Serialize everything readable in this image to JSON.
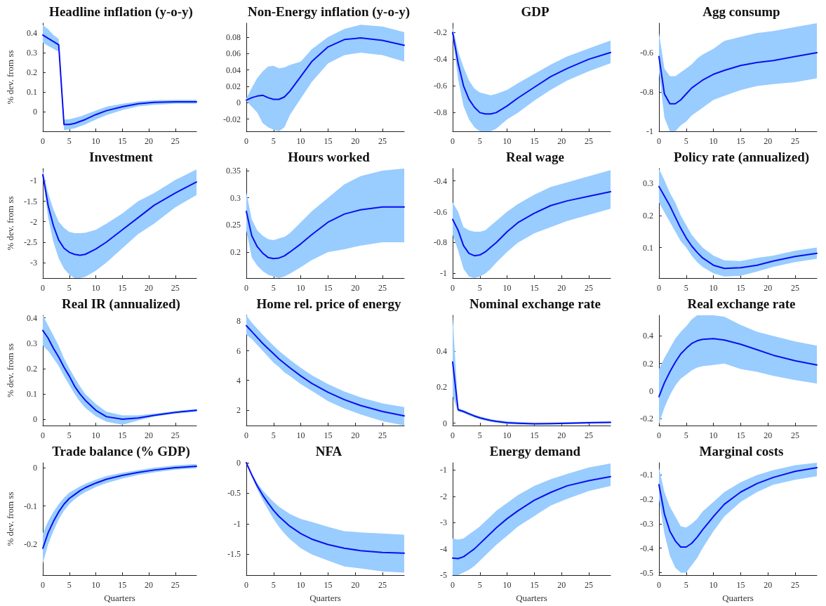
{
  "chart_data": [
    {
      "type": "line",
      "title": "Headline inflation (y-o-y)",
      "ylabel": "% dev. from ss",
      "x": [
        0,
        1,
        2,
        3,
        4,
        5,
        6,
        7,
        8,
        10,
        12,
        15,
        18,
        21,
        25,
        29
      ],
      "xlim": [
        0,
        29
      ],
      "xticks": [
        0,
        5,
        10,
        15,
        20,
        25
      ],
      "ylim": [
        -0.1,
        0.45
      ],
      "yticks": [
        0,
        0.1,
        0.2,
        0.3,
        0.4
      ],
      "series": [
        {
          "color": "#0a0ff0",
          "values": [
            0.39,
            0.373,
            0.357,
            0.34,
            -0.065,
            -0.065,
            -0.06,
            -0.05,
            -0.04,
            -0.015,
            0.005,
            0.025,
            0.04,
            0.047,
            0.05,
            0.05
          ],
          "lower": [
            0.35,
            0.335,
            0.32,
            0.305,
            -0.095,
            -0.09,
            -0.085,
            -0.075,
            -0.065,
            -0.04,
            -0.018,
            0.008,
            0.027,
            0.035,
            0.04,
            0.04
          ],
          "upper": [
            0.44,
            0.42,
            0.39,
            0.37,
            -0.04,
            -0.038,
            -0.032,
            -0.025,
            -0.015,
            0.005,
            0.025,
            0.04,
            0.052,
            0.058,
            0.06,
            0.06
          ]
        }
      ]
    },
    {
      "type": "line",
      "title": "Non-Energy inflation (y-o-y)",
      "x": [
        0,
        1,
        2,
        3,
        4,
        5,
        6,
        7,
        8,
        10,
        12,
        15,
        18,
        21,
        25,
        29
      ],
      "xlim": [
        0,
        29
      ],
      "xticks": [
        0,
        5,
        10,
        15,
        20,
        25
      ],
      "ylim": [
        -0.035,
        0.097
      ],
      "yticks": [
        -0.02,
        0,
        0.02,
        0.04,
        0.06,
        0.08
      ],
      "series": [
        {
          "color": "#0a0ff0",
          "values": [
            0.003,
            0.006,
            0.008,
            0.009,
            0.006,
            0.004,
            0.004,
            0.007,
            0.014,
            0.032,
            0.05,
            0.068,
            0.077,
            0.079,
            0.076,
            0.07
          ],
          "lower": [
            0.002,
            -0.005,
            -0.012,
            -0.025,
            -0.03,
            -0.033,
            -0.035,
            -0.03,
            -0.015,
            0.005,
            0.025,
            0.048,
            0.058,
            0.061,
            0.058,
            0.05
          ],
          "upper": [
            0.005,
            0.018,
            0.03,
            0.038,
            0.044,
            0.045,
            0.042,
            0.043,
            0.046,
            0.05,
            0.065,
            0.08,
            0.09,
            0.095,
            0.093,
            0.086
          ]
        }
      ]
    },
    {
      "type": "line",
      "title": "GDP",
      "x": [
        0,
        1,
        2,
        3,
        4,
        5,
        6,
        7,
        8,
        10,
        12,
        15,
        18,
        21,
        25,
        29
      ],
      "xlim": [
        0,
        29
      ],
      "xticks": [
        0,
        5,
        10,
        15,
        20,
        25
      ],
      "ylim": [
        -0.94,
        -0.13
      ],
      "yticks": [
        -0.8,
        -0.6,
        -0.4,
        -0.2
      ],
      "series": [
        {
          "color": "#0a0ff0",
          "values": [
            -0.2,
            -0.43,
            -0.6,
            -0.7,
            -0.76,
            -0.8,
            -0.81,
            -0.81,
            -0.8,
            -0.75,
            -0.69,
            -0.61,
            -0.53,
            -0.47,
            -0.4,
            -0.35
          ],
          "lower": [
            -0.23,
            -0.55,
            -0.75,
            -0.85,
            -0.91,
            -0.94,
            -0.94,
            -0.94,
            -0.92,
            -0.85,
            -0.8,
            -0.71,
            -0.63,
            -0.56,
            -0.49,
            -0.43
          ],
          "upper": [
            -0.16,
            -0.34,
            -0.46,
            -0.56,
            -0.62,
            -0.65,
            -0.66,
            -0.67,
            -0.66,
            -0.63,
            -0.58,
            -0.51,
            -0.44,
            -0.38,
            -0.32,
            -0.26
          ]
        }
      ]
    },
    {
      "type": "line",
      "title": "Agg consump",
      "x": [
        0,
        1,
        2,
        3,
        4,
        5,
        6,
        7,
        8,
        10,
        12,
        15,
        18,
        21,
        25,
        29
      ],
      "xlim": [
        0,
        29
      ],
      "xticks": [
        0,
        5,
        10,
        15,
        20,
        25
      ],
      "ylim": [
        -1,
        -0.45
      ],
      "yticks": [
        -1,
        -0.8,
        -0.6
      ],
      "series": [
        {
          "color": "#0a0ff0",
          "values": [
            -0.62,
            -0.81,
            -0.86,
            -0.86,
            -0.84,
            -0.81,
            -0.78,
            -0.76,
            -0.74,
            -0.71,
            -0.69,
            -0.665,
            -0.65,
            -0.64,
            -0.62,
            -0.6
          ],
          "lower": [
            -0.7,
            -0.93,
            -1,
            -1,
            -0.97,
            -0.95,
            -0.92,
            -0.9,
            -0.88,
            -0.84,
            -0.82,
            -0.79,
            -0.77,
            -0.76,
            -0.75,
            -0.73
          ],
          "upper": [
            -0.5,
            -0.68,
            -0.72,
            -0.72,
            -0.7,
            -0.68,
            -0.66,
            -0.63,
            -0.61,
            -0.58,
            -0.54,
            -0.52,
            -0.5,
            -0.49,
            -0.47,
            -0.45
          ]
        }
      ]
    },
    {
      "type": "line",
      "title": "Investment",
      "ylabel": "% dev. from ss",
      "x": [
        0,
        1,
        2,
        3,
        4,
        5,
        6,
        7,
        8,
        10,
        12,
        15,
        18,
        21,
        25,
        29
      ],
      "xlim": [
        0,
        29
      ],
      "xticks": [
        0,
        5,
        10,
        15,
        20,
        25
      ],
      "ylim": [
        -3.38,
        -0.7
      ],
      "yticks": [
        -3,
        -2.5,
        -2,
        -1.5,
        -1
      ],
      "series": [
        {
          "color": "#0a0ff0",
          "values": [
            -0.85,
            -1.6,
            -2.1,
            -2.45,
            -2.65,
            -2.75,
            -2.8,
            -2.82,
            -2.8,
            -2.67,
            -2.5,
            -2.2,
            -1.9,
            -1.6,
            -1.3,
            -1.03
          ],
          "lower": [
            -0.9,
            -1.9,
            -2.5,
            -2.9,
            -3.15,
            -3.3,
            -3.38,
            -3.38,
            -3.35,
            -3.2,
            -3,
            -2.65,
            -2.3,
            -2.05,
            -1.65,
            -1.35
          ],
          "upper": [
            -0.75,
            -1.3,
            -1.7,
            -2,
            -2.15,
            -2.25,
            -2.28,
            -2.28,
            -2.27,
            -2.2,
            -2.05,
            -1.8,
            -1.5,
            -1.3,
            -0.98,
            -0.72
          ]
        }
      ]
    },
    {
      "type": "line",
      "title": "Hours worked",
      "x": [
        0,
        1,
        2,
        3,
        4,
        5,
        6,
        7,
        8,
        10,
        12,
        15,
        18,
        21,
        25,
        29
      ],
      "xlim": [
        0,
        29
      ],
      "xticks": [
        0,
        5,
        10,
        15,
        20,
        25
      ],
      "ylim": [
        0.152,
        0.354
      ],
      "yticks": [
        0.2,
        0.25,
        0.3,
        0.35
      ],
      "series": [
        {
          "color": "#0a0ff0",
          "values": [
            0.275,
            0.23,
            0.21,
            0.198,
            0.19,
            0.188,
            0.189,
            0.193,
            0.2,
            0.215,
            0.232,
            0.255,
            0.27,
            0.278,
            0.283,
            0.283
          ],
          "lower": [
            0.24,
            0.19,
            0.175,
            0.165,
            0.158,
            0.155,
            0.152,
            0.155,
            0.16,
            0.172,
            0.185,
            0.2,
            0.205,
            0.212,
            0.218,
            0.218
          ],
          "upper": [
            0.31,
            0.26,
            0.24,
            0.23,
            0.224,
            0.222,
            0.225,
            0.228,
            0.235,
            0.255,
            0.275,
            0.3,
            0.325,
            0.34,
            0.35,
            0.354
          ]
        }
      ]
    },
    {
      "type": "line",
      "title": "Real wage",
      "x": [
        0,
        1,
        2,
        3,
        4,
        5,
        6,
        7,
        8,
        10,
        12,
        15,
        18,
        21,
        25,
        29
      ],
      "xlim": [
        0,
        29
      ],
      "xticks": [
        0,
        5,
        10,
        15,
        20,
        25
      ],
      "ylim": [
        -1.03,
        -0.32
      ],
      "yticks": [
        -1,
        -0.8,
        -0.6,
        -0.4
      ],
      "series": [
        {
          "color": "#0a0ff0",
          "values": [
            -0.65,
            -0.72,
            -0.82,
            -0.87,
            -0.885,
            -0.88,
            -0.86,
            -0.83,
            -0.8,
            -0.73,
            -0.67,
            -0.61,
            -0.56,
            -0.53,
            -0.5,
            -0.47
          ],
          "lower": [
            -0.75,
            -0.85,
            -0.97,
            -1.02,
            -1.03,
            -1.02,
            -1,
            -0.97,
            -0.93,
            -0.86,
            -0.8,
            -0.74,
            -0.7,
            -0.66,
            -0.62,
            -0.58
          ],
          "upper": [
            -0.54,
            -0.6,
            -0.7,
            -0.72,
            -0.73,
            -0.73,
            -0.72,
            -0.69,
            -0.66,
            -0.6,
            -0.55,
            -0.49,
            -0.44,
            -0.41,
            -0.37,
            -0.33
          ]
        }
      ]
    },
    {
      "type": "line",
      "title": "Policy rate (annualized)",
      "x": [
        0,
        1,
        2,
        3,
        4,
        5,
        6,
        7,
        8,
        10,
        12,
        15,
        18,
        21,
        25,
        29
      ],
      "xlim": [
        0,
        29
      ],
      "xticks": [
        0,
        5,
        10,
        15,
        20,
        25
      ],
      "ylim": [
        0.005,
        0.346
      ],
      "yticks": [
        0.1,
        0.2,
        0.3
      ],
      "series": [
        {
          "color": "#0a0ff0",
          "values": [
            0.29,
            0.26,
            0.23,
            0.195,
            0.16,
            0.13,
            0.105,
            0.085,
            0.068,
            0.045,
            0.035,
            0.037,
            0.045,
            0.058,
            0.072,
            0.082
          ],
          "lower": [
            0.24,
            0.21,
            0.18,
            0.15,
            0.12,
            0.1,
            0.075,
            0.055,
            0.04,
            0.02,
            0.01,
            0.012,
            0.025,
            0.04,
            0.055,
            0.065
          ],
          "upper": [
            0.345,
            0.31,
            0.27,
            0.24,
            0.2,
            0.17,
            0.14,
            0.12,
            0.1,
            0.075,
            0.06,
            0.058,
            0.068,
            0.075,
            0.09,
            0.1
          ]
        }
      ]
    },
    {
      "type": "line",
      "title": "Real IR (annualized)",
      "ylabel": "% dev. from ss",
      "x": [
        0,
        1,
        2,
        3,
        4,
        5,
        6,
        7,
        8,
        10,
        12,
        15,
        18,
        21,
        25,
        29
      ],
      "xlim": [
        0,
        29
      ],
      "xticks": [
        0,
        5,
        10,
        15,
        20,
        25
      ],
      "ylim": [
        -0.025,
        0.41
      ],
      "yticks": [
        0,
        0.1,
        0.2,
        0.3,
        0.4
      ],
      "series": [
        {
          "color": "#0a0ff0",
          "values": [
            0.35,
            0.32,
            0.28,
            0.245,
            0.205,
            0.17,
            0.13,
            0.1,
            0.075,
            0.035,
            0.01,
            0,
            0.005,
            0.015,
            0.027,
            0.035
          ],
          "lower": [
            0.29,
            0.27,
            0.24,
            0.21,
            0.17,
            0.135,
            0.1,
            0.07,
            0.045,
            0.012,
            -0.01,
            -0.022,
            -0.005,
            0.01,
            0.022,
            0.03
          ],
          "upper": [
            0.41,
            0.37,
            0.33,
            0.29,
            0.24,
            0.2,
            0.165,
            0.13,
            0.1,
            0.06,
            0.03,
            0.015,
            0.015,
            0.022,
            0.032,
            0.04
          ]
        }
      ]
    },
    {
      "type": "line",
      "title": "Home rel. price of energy",
      "x": [
        0,
        1,
        2,
        3,
        4,
        5,
        6,
        7,
        8,
        10,
        12,
        15,
        18,
        21,
        25,
        29
      ],
      "xlim": [
        0,
        29
      ],
      "xticks": [
        0,
        5,
        10,
        15,
        20,
        25
      ],
      "ylim": [
        0.95,
        8.4
      ],
      "yticks": [
        2,
        4,
        6,
        8
      ],
      "series": [
        {
          "color": "#0a0ff0",
          "values": [
            7.7,
            7.3,
            6.9,
            6.5,
            6.15,
            5.8,
            5.45,
            5.15,
            4.85,
            4.3,
            3.8,
            3.2,
            2.7,
            2.3,
            1.9,
            1.6
          ],
          "lower": [
            7.1,
            6.8,
            6.4,
            6,
            5.6,
            5.2,
            4.9,
            4.55,
            4.3,
            3.75,
            3.3,
            2.6,
            2.1,
            1.7,
            1.25,
            0.95
          ],
          "upper": [
            8.4,
            7.9,
            7.5,
            7.1,
            6.7,
            6.35,
            6,
            5.7,
            5.4,
            4.85,
            4.35,
            3.75,
            3.25,
            2.85,
            2.45,
            2.2
          ]
        }
      ]
    },
    {
      "type": "line",
      "title": "Nominal exchange rate",
      "x": [
        0,
        1,
        2,
        3,
        4,
        5,
        6,
        7,
        8,
        10,
        12,
        15,
        18,
        21,
        25,
        29
      ],
      "xlim": [
        0,
        29
      ],
      "xticks": [
        0,
        5,
        10,
        15,
        20,
        25
      ],
      "ylim": [
        -0.013,
        0.6
      ],
      "yticks": [
        0,
        0.2,
        0.4
      ],
      "series": [
        {
          "color": "#0a0ff0",
          "values": [
            0.34,
            0.075,
            0.065,
            0.052,
            0.04,
            0.03,
            0.022,
            0.015,
            0.01,
            0.003,
            0,
            -0.003,
            -0.002,
            0,
            0.003,
            0.005
          ],
          "lower": [
            0.15,
            0.065,
            0.057,
            0.044,
            0.032,
            0.022,
            0.014,
            0.008,
            0.003,
            -0.004,
            -0.007,
            -0.009,
            -0.008,
            -0.006,
            -0.002,
            0
          ],
          "upper": [
            0.6,
            0.085,
            0.073,
            0.06,
            0.048,
            0.038,
            0.03,
            0.022,
            0.017,
            0.01,
            0.007,
            0.003,
            0.004,
            0.006,
            0.008,
            0.01
          ]
        }
      ]
    },
    {
      "type": "line",
      "title": "Real exchange rate",
      "x": [
        0,
        1,
        2,
        3,
        4,
        5,
        6,
        7,
        8,
        10,
        12,
        15,
        18,
        21,
        25,
        29
      ],
      "xlim": [
        0,
        29
      ],
      "xticks": [
        0,
        5,
        10,
        15,
        20,
        25
      ],
      "ylim": [
        -0.25,
        0.55
      ],
      "yticks": [
        -0.2,
        0,
        0.2,
        0.4
      ],
      "series": [
        {
          "color": "#0a0ff0",
          "values": [
            -0.04,
            0.06,
            0.14,
            0.21,
            0.27,
            0.31,
            0.345,
            0.365,
            0.375,
            0.38,
            0.37,
            0.34,
            0.3,
            0.26,
            0.22,
            0.19
          ],
          "lower": [
            -0.24,
            -0.12,
            -0.03,
            0.04,
            0.09,
            0.12,
            0.15,
            0.17,
            0.18,
            0.19,
            0.2,
            0.16,
            0.14,
            0.11,
            0.08,
            0.055
          ],
          "upper": [
            0.16,
            0.24,
            0.31,
            0.38,
            0.43,
            0.47,
            0.52,
            0.55,
            0.55,
            0.55,
            0.54,
            0.48,
            0.43,
            0.4,
            0.36,
            0.33
          ]
        }
      ]
    },
    {
      "type": "line",
      "title": "Trade balance (% GDP)",
      "ylabel": "% dev. from ss",
      "xlabel": "Quarters",
      "x": [
        0,
        1,
        2,
        3,
        4,
        5,
        6,
        7,
        8,
        10,
        12,
        15,
        18,
        21,
        25,
        29
      ],
      "xlim": [
        0,
        29
      ],
      "xticks": [
        0,
        5,
        10,
        15,
        20,
        25
      ],
      "ylim": [
        -0.28,
        0.013
      ],
      "yticks": [
        -0.2,
        -0.1,
        0
      ],
      "series": [
        {
          "color": "#0a0ff0",
          "values": [
            -0.21,
            -0.17,
            -0.14,
            -0.115,
            -0.095,
            -0.08,
            -0.07,
            -0.06,
            -0.052,
            -0.04,
            -0.03,
            -0.02,
            -0.012,
            -0.006,
            0,
            0.004
          ],
          "lower": [
            -0.25,
            -0.2,
            -0.165,
            -0.135,
            -0.112,
            -0.095,
            -0.082,
            -0.072,
            -0.064,
            -0.05,
            -0.04,
            -0.028,
            -0.019,
            -0.012,
            -0.005,
            -0.001
          ],
          "upper": [
            -0.17,
            -0.14,
            -0.115,
            -0.095,
            -0.078,
            -0.065,
            -0.057,
            -0.049,
            -0.042,
            -0.031,
            -0.022,
            -0.013,
            -0.006,
            0,
            0.006,
            0.01
          ]
        }
      ]
    },
    {
      "type": "line",
      "title": "NFA",
      "xlabel": "Quarters",
      "x": [
        0,
        1,
        2,
        3,
        4,
        5,
        6,
        7,
        8,
        10,
        12,
        15,
        18,
        21,
        25,
        29
      ],
      "xlim": [
        0,
        29
      ],
      "xticks": [
        0,
        5,
        10,
        15,
        20,
        25
      ],
      "ylim": [
        -1.84,
        0
      ],
      "yticks": [
        -1.5,
        -1,
        -0.5,
        0
      ],
      "series": [
        {
          "color": "#0a0ff0",
          "values": [
            0,
            -0.2,
            -0.38,
            -0.53,
            -0.66,
            -0.78,
            -0.88,
            -0.96,
            -1.04,
            -1.16,
            -1.25,
            -1.34,
            -1.4,
            -1.44,
            -1.47,
            -1.48
          ],
          "lower": [
            0,
            -0.22,
            -0.43,
            -0.61,
            -0.77,
            -0.92,
            -1.05,
            -1.16,
            -1.25,
            -1.4,
            -1.5,
            -1.6,
            -1.7,
            -1.73,
            -1.78,
            -1.8
          ],
          "upper": [
            0,
            -0.17,
            -0.33,
            -0.45,
            -0.55,
            -0.64,
            -0.72,
            -0.78,
            -0.84,
            -0.92,
            -0.97,
            -1.05,
            -1.12,
            -1.14,
            -1.16,
            -1.18
          ]
        }
      ]
    },
    {
      "type": "line",
      "title": "Energy demand",
      "xlabel": "Quarters",
      "x": [
        0,
        1,
        2,
        3,
        4,
        5,
        6,
        7,
        8,
        10,
        12,
        15,
        18,
        21,
        25,
        29
      ],
      "xlim": [
        0,
        29
      ],
      "xticks": [
        0,
        5,
        10,
        15,
        20,
        25
      ],
      "ylim": [
        -5,
        -0.72
      ],
      "yticks": [
        -5,
        -4,
        -3,
        -2,
        -1
      ],
      "series": [
        {
          "color": "#0a0ff0",
          "values": [
            -4.35,
            -4.37,
            -4.3,
            -4.15,
            -4,
            -3.8,
            -3.6,
            -3.4,
            -3.2,
            -2.85,
            -2.55,
            -2.15,
            -1.85,
            -1.6,
            -1.4,
            -1.25
          ],
          "lower": [
            -5,
            -5,
            -4.9,
            -4.8,
            -4.65,
            -4.45,
            -4.25,
            -4.05,
            -3.85,
            -3.5,
            -3.15,
            -2.75,
            -2.35,
            -2.1,
            -1.8,
            -1.6
          ],
          "upper": [
            -3.6,
            -3.65,
            -3.6,
            -3.45,
            -3.3,
            -3.15,
            -2.95,
            -2.75,
            -2.55,
            -2.25,
            -1.95,
            -1.6,
            -1.35,
            -1.15,
            -0.9,
            -0.75
          ]
        }
      ]
    },
    {
      "type": "line",
      "title": "Marginal costs",
      "xlabel": "Quarters",
      "x": [
        0,
        1,
        2,
        3,
        4,
        5,
        6,
        7,
        8,
        10,
        12,
        15,
        18,
        21,
        25,
        29
      ],
      "xlim": [
        0,
        29
      ],
      "xticks": [
        0,
        5,
        10,
        15,
        20,
        25
      ],
      "ylim": [
        -0.51,
        -0.05
      ],
      "yticks": [
        -0.5,
        -0.4,
        -0.3,
        -0.2,
        -0.1
      ],
      "series": [
        {
          "color": "#0a0ff0",
          "values": [
            -0.14,
            -0.26,
            -0.33,
            -0.37,
            -0.395,
            -0.395,
            -0.38,
            -0.355,
            -0.325,
            -0.27,
            -0.22,
            -0.17,
            -0.135,
            -0.11,
            -0.085,
            -0.07
          ],
          "lower": [
            -0.2,
            -0.34,
            -0.43,
            -0.48,
            -0.5,
            -0.5,
            -0.47,
            -0.44,
            -0.4,
            -0.33,
            -0.27,
            -0.21,
            -0.17,
            -0.14,
            -0.12,
            -0.105
          ],
          "upper": [
            -0.07,
            -0.17,
            -0.23,
            -0.27,
            -0.31,
            -0.315,
            -0.3,
            -0.28,
            -0.25,
            -0.21,
            -0.17,
            -0.13,
            -0.1,
            -0.08,
            -0.06,
            -0.05
          ]
        }
      ]
    }
  ]
}
